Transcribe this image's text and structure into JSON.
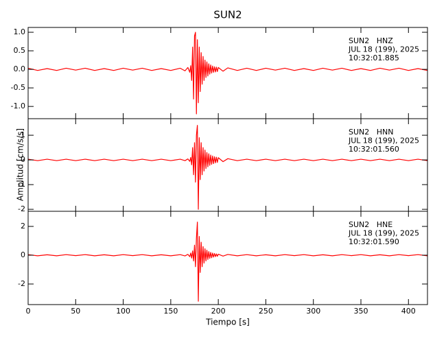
{
  "chart_data": [
    {
      "type": "line",
      "title": "SUN2",
      "annotations": [
        "SUN2   HNZ",
        "JUL 18 (199), 2025",
        "10:32:01.885"
      ],
      "xlim": [
        0,
        420
      ],
      "ylim": [
        -1.33,
        1.13
      ],
      "yticks": [
        {
          "value": 1,
          "label": "1.0"
        },
        0.5,
        {
          "value": 0,
          "label": "0.0"
        },
        -0.5,
        {
          "value": -1,
          "label": "-1.0"
        }
      ],
      "series": [
        {
          "color": "#ff0000",
          "x": [
            0,
            10,
            20,
            30,
            40,
            50,
            60,
            70,
            80,
            90,
            100,
            110,
            120,
            130,
            140,
            150,
            160,
            165,
            168,
            170,
            171,
            172,
            173,
            174,
            175,
            176,
            177,
            178,
            179,
            180,
            181,
            182,
            183,
            184,
            185,
            186,
            187,
            188,
            189,
            190,
            191,
            192,
            193,
            194,
            195,
            196,
            197,
            198,
            199,
            200,
            205,
            210,
            220,
            230,
            240,
            250,
            260,
            270,
            280,
            290,
            300,
            310,
            320,
            330,
            340,
            350,
            360,
            370,
            380,
            390,
            400,
            410,
            420
          ],
          "values": [
            0.03,
            -0.03,
            0.02,
            -0.03,
            0.03,
            -0.02,
            0.03,
            -0.03,
            0.02,
            -0.03,
            0.03,
            -0.02,
            0.03,
            -0.03,
            0.02,
            -0.03,
            0.03,
            -0.04,
            0.05,
            -0.08,
            0.1,
            -0.3,
            0.6,
            -0.8,
            0.9,
            1.0,
            -1.2,
            0.8,
            -0.9,
            0.6,
            -0.6,
            0.45,
            -0.4,
            0.35,
            -0.3,
            0.25,
            -0.22,
            0.2,
            -0.18,
            0.15,
            -0.13,
            0.12,
            -0.1,
            0.09,
            -0.08,
            0.07,
            -0.07,
            0.06,
            -0.06,
            0.05,
            -0.05,
            0.04,
            -0.03,
            0.03,
            -0.03,
            0.03,
            -0.02,
            0.03,
            -0.03,
            0.02,
            -0.03,
            0.03,
            -0.02,
            0.03,
            -0.03,
            0.02,
            -0.03,
            0.03,
            -0.02,
            0.03,
            -0.03,
            0.02,
            -0.03
          ]
        }
      ]
    },
    {
      "type": "line",
      "ylabel": "Amplitud [cm/s/s]",
      "annotations": [
        "SUN2   HNN",
        "JUL 18 (199), 2025",
        "10:32:01.560"
      ],
      "xlim": [
        0,
        420
      ],
      "ylim": [
        -2.08,
        1.67
      ],
      "yticks": [
        1,
        0,
        -1,
        -2
      ],
      "series": [
        {
          "color": "#ff0000",
          "x": [
            0,
            10,
            20,
            30,
            40,
            50,
            60,
            70,
            80,
            90,
            100,
            110,
            120,
            130,
            140,
            150,
            160,
            165,
            168,
            170,
            171,
            172,
            173,
            174,
            175,
            176,
            177,
            178,
            179,
            180,
            181,
            182,
            183,
            184,
            185,
            186,
            187,
            188,
            189,
            190,
            191,
            192,
            193,
            194,
            195,
            196,
            197,
            198,
            199,
            200,
            205,
            210,
            220,
            230,
            240,
            250,
            260,
            270,
            280,
            290,
            300,
            310,
            320,
            330,
            340,
            350,
            360,
            370,
            380,
            390,
            400,
            410,
            420
          ],
          "values": [
            0.03,
            -0.03,
            0.03,
            -0.03,
            0.03,
            -0.03,
            0.03,
            -0.03,
            0.03,
            -0.03,
            0.03,
            -0.03,
            0.03,
            -0.03,
            0.03,
            -0.03,
            0.03,
            -0.03,
            0.04,
            -0.06,
            0.1,
            -0.2,
            0.5,
            -0.6,
            0.7,
            -0.9,
            1.0,
            1.4,
            -2.0,
            0.9,
            -0.8,
            0.7,
            -0.6,
            0.5,
            -0.45,
            0.4,
            -0.35,
            0.3,
            -0.28,
            0.25,
            -0.22,
            0.2,
            -0.18,
            0.16,
            -0.15,
            0.13,
            -0.12,
            0.11,
            -0.1,
            0.09,
            -0.07,
            0.05,
            -0.03,
            0.03,
            -0.03,
            0.03,
            -0.03,
            0.03,
            -0.03,
            0.03,
            -0.03,
            0.03,
            -0.03,
            0.03,
            -0.03,
            0.03,
            -0.03,
            0.03,
            -0.03,
            0.03,
            -0.03,
            0.03,
            -0.03
          ]
        }
      ]
    },
    {
      "type": "line",
      "xlabel": "Tiempo [s]",
      "annotations": [
        "SUN2   HNE",
        "JUL 18 (199), 2025",
        "10:32:01.590"
      ],
      "xlim": [
        0,
        420
      ],
      "xticks": [
        0,
        50,
        100,
        150,
        200,
        250,
        300,
        350,
        400
      ],
      "ylim": [
        -3.43,
        3.05
      ],
      "yticks": [
        2,
        0,
        -2
      ],
      "series": [
        {
          "color": "#ff0000",
          "x": [
            0,
            10,
            20,
            30,
            40,
            50,
            60,
            70,
            80,
            90,
            100,
            110,
            120,
            130,
            140,
            150,
            160,
            165,
            168,
            170,
            171,
            172,
            173,
            174,
            175,
            176,
            177,
            178,
            179,
            180,
            181,
            182,
            183,
            184,
            185,
            186,
            187,
            188,
            189,
            190,
            191,
            192,
            193,
            194,
            195,
            196,
            197,
            198,
            199,
            200,
            205,
            210,
            220,
            230,
            240,
            250,
            260,
            270,
            280,
            290,
            300,
            310,
            320,
            330,
            340,
            350,
            360,
            370,
            380,
            390,
            400,
            410,
            420
          ],
          "values": [
            0.04,
            -0.04,
            0.03,
            -0.04,
            0.04,
            -0.03,
            0.04,
            -0.04,
            0.03,
            -0.04,
            0.04,
            -0.03,
            0.04,
            -0.04,
            0.03,
            -0.04,
            0.04,
            -0.05,
            0.06,
            -0.1,
            0.15,
            -0.2,
            0.3,
            -0.4,
            0.7,
            -0.8,
            1.2,
            2.3,
            -3.2,
            1.3,
            -1.2,
            0.9,
            -0.8,
            0.6,
            -0.55,
            0.45,
            -0.4,
            0.35,
            -0.3,
            0.25,
            -0.22,
            0.2,
            -0.18,
            0.15,
            -0.13,
            0.12,
            -0.1,
            0.09,
            -0.08,
            0.07,
            -0.06,
            0.05,
            -0.04,
            0.04,
            -0.04,
            0.03,
            -0.04,
            0.04,
            -0.03,
            0.04,
            -0.04,
            0.03,
            -0.04,
            0.04,
            -0.03,
            0.04,
            -0.04,
            0.03,
            -0.04,
            0.04,
            -0.03,
            0.04,
            -0.04
          ]
        }
      ]
    }
  ]
}
